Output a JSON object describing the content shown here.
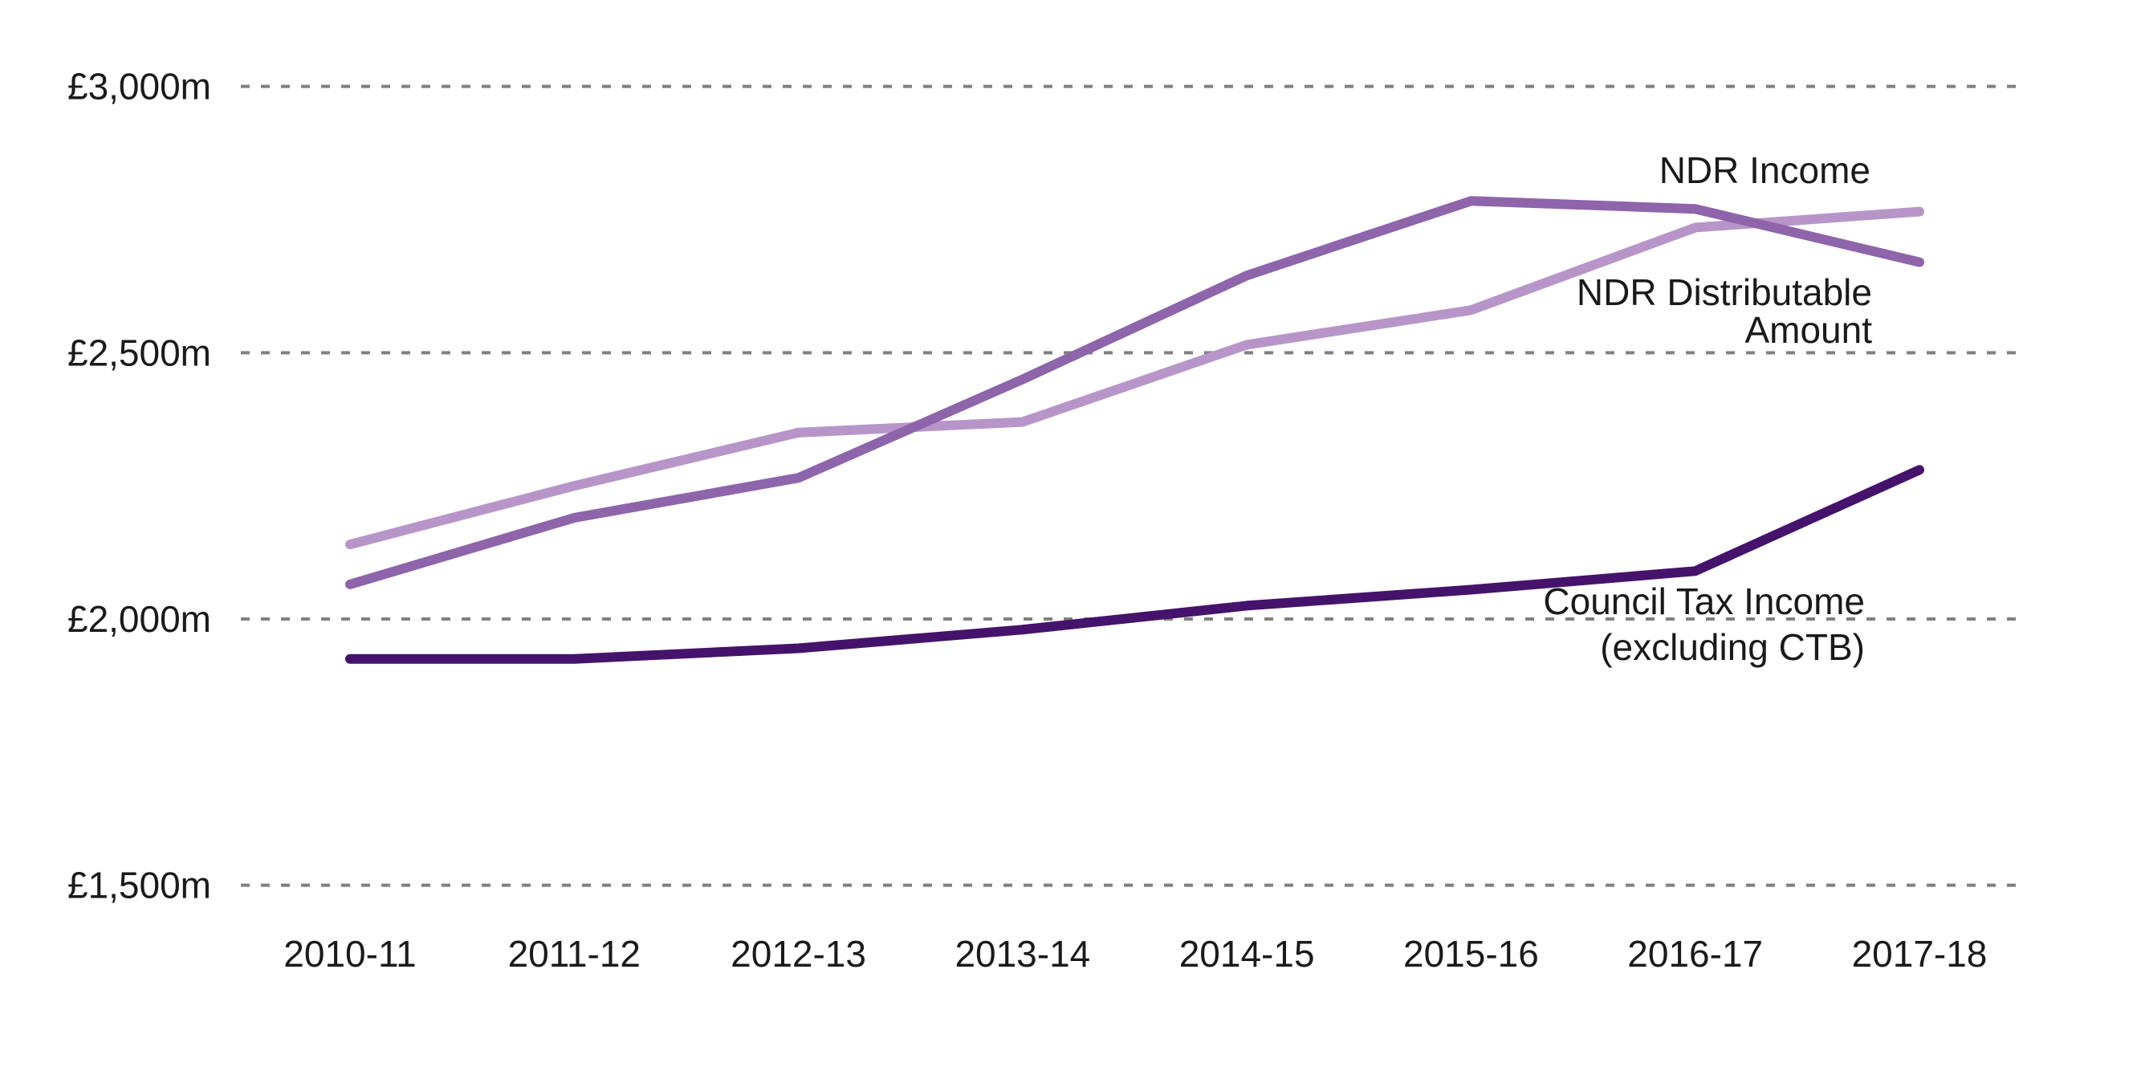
{
  "chart_data": {
    "type": "line",
    "title": "",
    "categories": [
      "2010-11",
      "2011-12",
      "2012-13",
      "2013-14",
      "2014-15",
      "2015-16",
      "2016-17",
      "2017-18"
    ],
    "series": [
      {
        "name": "NDR Distributable Amount",
        "color": "#b795c9",
        "values": [
          2140,
          2250,
          2350,
          2370,
          2515,
          2580,
          2735,
          2765
        ],
        "label": {
          "lines": [
            "NDR Distributable",
            "Amount"
          ],
          "x": 2332,
          "y": 380,
          "line_height": 47
        }
      },
      {
        "name": "NDR Income",
        "color": "#8e64aa",
        "values": [
          2065,
          2190,
          2265,
          2450,
          2645,
          2785,
          2770,
          2670
        ],
        "label": {
          "lines": [
            "NDR Income"
          ],
          "x": 2330,
          "y": 228,
          "line_height": 47
        }
      },
      {
        "name": "Council Tax Income (excluding CTB)",
        "color": "#45136b",
        "values": [
          1925,
          1925,
          1945,
          1980,
          2025,
          2055,
          2090,
          2280
        ],
        "label": {
          "lines": [
            "Council Tax Income",
            "(excluding CTB)"
          ],
          "x": 2323,
          "y": 765,
          "line_height": 57
        }
      }
    ],
    "y_axis": {
      "min": 1500,
      "max": 3000,
      "tick_step": 500,
      "ticks": [
        {
          "label": "£3,000m",
          "value": 3000
        },
        {
          "label": "£2,500m",
          "value": 2500
        },
        {
          "label": "£2,000m",
          "value": 2000
        },
        {
          "label": "£1,500m",
          "value": 1500
        }
      ]
    },
    "grid": {
      "show": true,
      "color": "#808080",
      "dash_on": 11,
      "dash_off": 14,
      "thickness": 4
    },
    "style": {
      "text_color": "#1a1a1a",
      "line_width": 12,
      "background": "#ffffff"
    },
    "legend": {
      "position": "right-inline-annotations"
    },
    "ylabel": "",
    "xlabel": ""
  }
}
